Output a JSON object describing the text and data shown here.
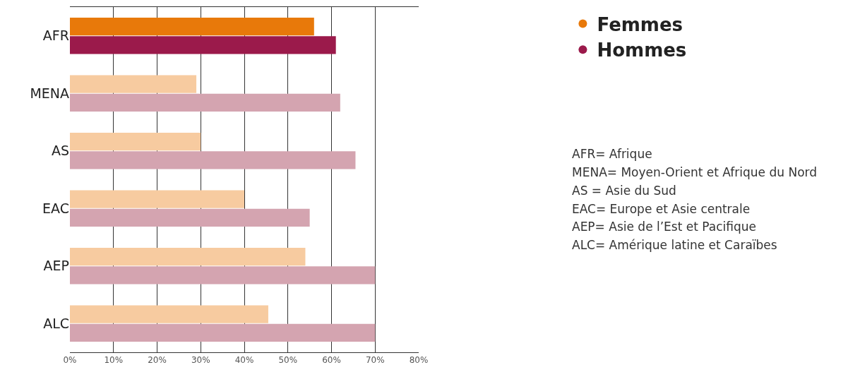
{
  "chart_data": {
    "type": "bar",
    "orientation": "horizontal",
    "categories": [
      "AFR",
      "MENA",
      "AS",
      "EAC",
      "AEP",
      "ALC"
    ],
    "series": [
      {
        "name": "Femmes",
        "color": "#e8790a",
        "colors": [
          "#e8790a",
          "#f7cba0",
          "#f7cba0",
          "#f7cba0",
          "#f7cba0",
          "#f7cba0"
        ],
        "values": [
          56,
          29,
          30,
          40,
          54,
          45.5
        ]
      },
      {
        "name": "Hommes",
        "color": "#9b1a4b",
        "colors": [
          "#9b1a4b",
          "#d4a4b0",
          "#d4a4b0",
          "#d4a4b0",
          "#d4a4b0",
          "#d4a4b0"
        ],
        "values": [
          61,
          62,
          65.5,
          55,
          70,
          70
        ]
      }
    ],
    "xlim": [
      0,
      80
    ],
    "xticks": [
      {
        "value": 0,
        "label": "0%"
      },
      {
        "value": 10,
        "label": "10%"
      },
      {
        "value": 20,
        "label": "20%"
      },
      {
        "value": 30,
        "label": "30%"
      },
      {
        "value": 40,
        "label": "40%"
      },
      {
        "value": 50,
        "label": "50%"
      },
      {
        "value": 60,
        "label": "60%"
      },
      {
        "value": 70,
        "label": "70%"
      },
      {
        "value": 80,
        "label": "80%"
      }
    ],
    "grid": "x",
    "legend": "right",
    "annotations": [
      "AFR= Afrique",
      "MENA= Moyen-Orient et Afrique du Nord",
      "AS = Asie du Sud",
      "EAC= Europe et Asie centrale",
      "AEP= Asie de l’Est et Pacifique",
      "ALC= Amérique latine et Caraïbes"
    ]
  }
}
